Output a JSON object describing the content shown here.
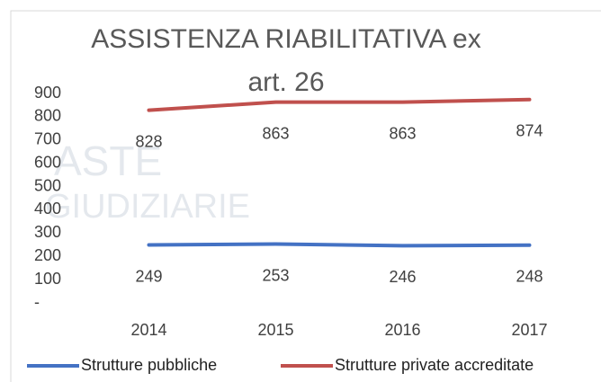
{
  "chart_data": {
    "type": "line",
    "title_lines": [
      "ASSISTENZA RIABILITATIVA ex",
      "art. 26"
    ],
    "watermark": [
      "ASTE",
      "GIUDIZIARIE"
    ],
    "categories": [
      "2014",
      "2015",
      "2016",
      "2017"
    ],
    "series": [
      {
        "name": "Strutture pubbliche",
        "color": "#4472c4",
        "values": [
          249,
          253,
          246,
          248
        ]
      },
      {
        "name": "Strutture private accreditate",
        "color": "#c0504d",
        "values": [
          828,
          863,
          863,
          874
        ]
      }
    ],
    "ylim": [
      0,
      900
    ],
    "yticks": [
      {
        "value": 0,
        "label": "-"
      },
      100,
      200,
      300,
      400,
      500,
      600,
      700,
      800,
      900
    ],
    "grid": false,
    "legend": "bottom"
  }
}
